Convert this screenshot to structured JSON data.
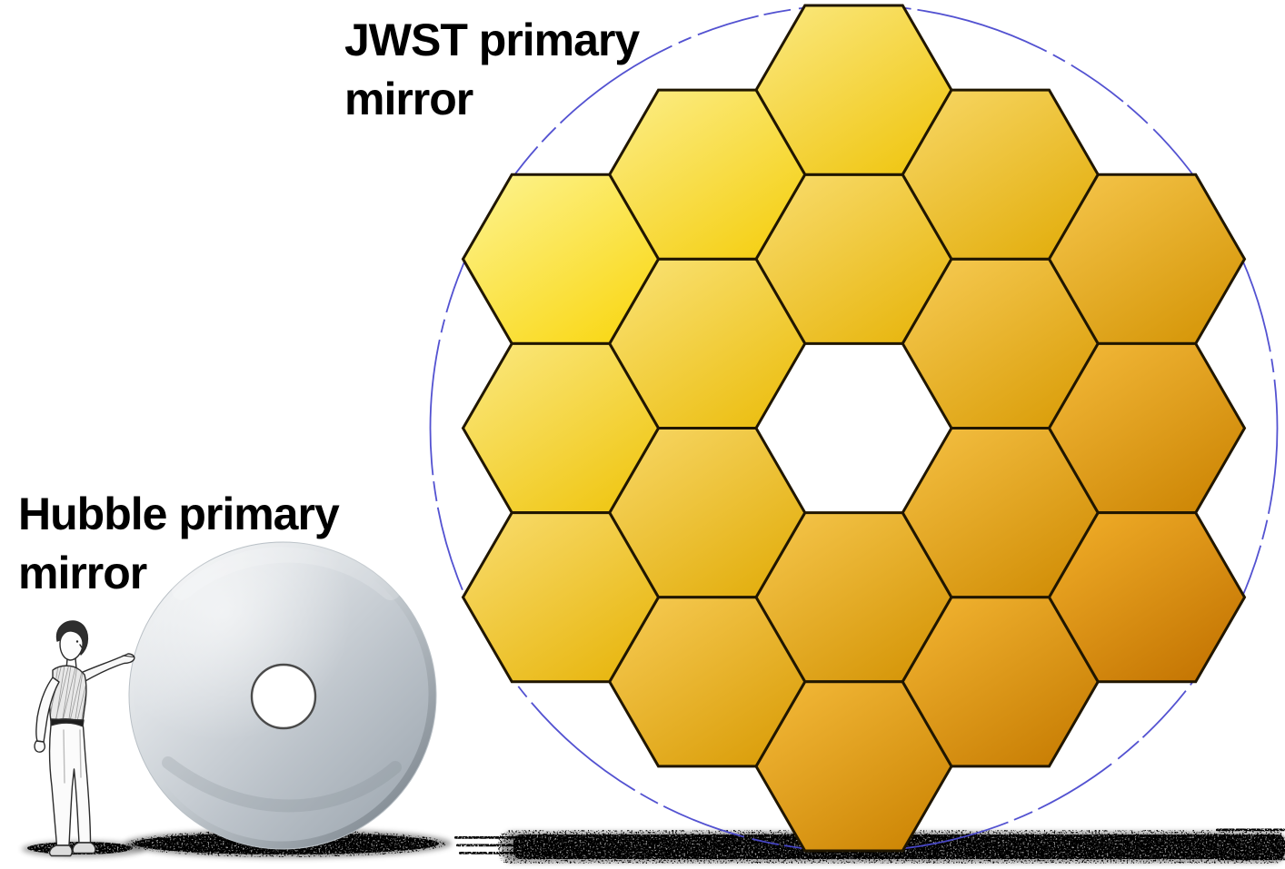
{
  "labels": {
    "jwst_line1": "JWST primary",
    "jwst_line2": "mirror",
    "hubble_line1": "Hubble primary",
    "hubble_line2": "mirror"
  },
  "jwst": {
    "segments_total": 18,
    "inner_ring_segments": 6,
    "outer_ring_segments": 12,
    "center_open": true,
    "segment_light_a": "#FEFC9E",
    "segment_light_b": "#F1A81E",
    "segment_dark_a": "#FFE31C",
    "segment_dark_b": "#BF6B00",
    "segment_border_color": "#201600",
    "outline_circle_color": "#4A49CF",
    "outline_circle_style": "dash-dot"
  },
  "hubble": {
    "disk_light": "#F3F5F6",
    "disk_mid": "#BCC3CA",
    "disk_dark": "#99A3AC",
    "rim_dark": "#6F7982",
    "hole_fill": "#FFFFFF",
    "hole_border": "#4A4A4A"
  },
  "shadows": {
    "speckle_color": "#0A0A0A",
    "haze_color": "#3A3A3A"
  }
}
